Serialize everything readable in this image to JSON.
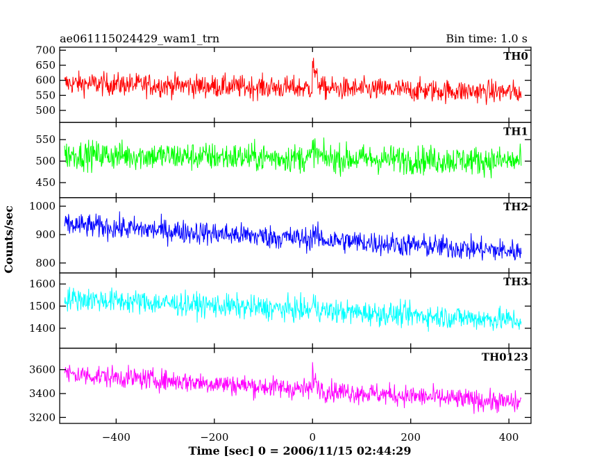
{
  "chart_data": {
    "type": "line",
    "title": "ae061115024429_wam1_trn",
    "subtitle": "Bin time: 1.0 s",
    "xlabel": "Time [sec] 0 = 2006/11/15 02:44:29",
    "ylabel": "Counts/sec",
    "xlim": [
      -515,
      445
    ],
    "xticks": [
      -400,
      -200,
      0,
      200,
      400
    ],
    "x_range_data": [
      -505,
      425
    ],
    "panels": [
      {
        "name": "TH0",
        "color": "#ff0000",
        "ylim": [
          460,
          710
        ],
        "yticks": [
          500,
          550,
          600,
          650,
          700
        ],
        "trend": [
          590,
          560
        ],
        "noise": 32,
        "burst": 90
      },
      {
        "name": "TH1",
        "color": "#00ff00",
        "ylim": [
          415,
          590
        ],
        "yticks": [
          450,
          500,
          550
        ],
        "trend": [
          515,
          500
        ],
        "noise": 28,
        "burst": 30
      },
      {
        "name": "TH2",
        "color": "#0000ff",
        "ylim": [
          765,
          1030
        ],
        "yticks": [
          800,
          900,
          1000
        ],
        "trend": [
          935,
          840
        ],
        "noise": 35,
        "burst": 30
      },
      {
        "name": "TH3",
        "color": "#00ffff",
        "ylim": [
          1310,
          1650
        ],
        "yticks": [
          1400,
          1500,
          1600
        ],
        "trend": [
          1535,
          1435
        ],
        "noise": 45,
        "burst": 40
      },
      {
        "name": "TH0123",
        "color": "#ff00ff",
        "ylim": [
          3150,
          3780
        ],
        "yticks": [
          3200,
          3400,
          3600
        ],
        "trend": [
          3565,
          3320
        ],
        "noise": 75,
        "burst": 150
      }
    ]
  }
}
